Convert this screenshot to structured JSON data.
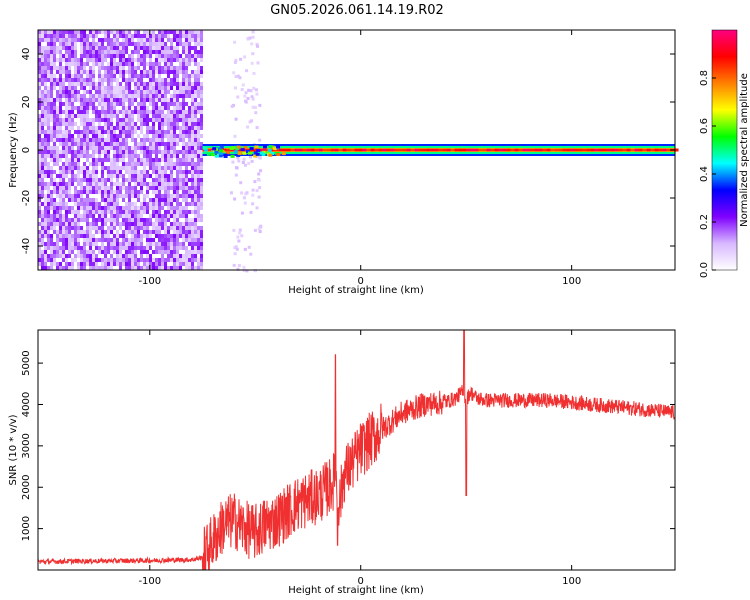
{
  "title": "GN05.2026.061.14.19.R02",
  "chart_data": [
    {
      "type": "heatmap",
      "xlabel": "Height of straight line (km)",
      "ylabel": "Frequency (Hz)",
      "xlim": [
        -153,
        149
      ],
      "ylim": [
        -50,
        50
      ],
      "x_ticks": [
        -100,
        0,
        100
      ],
      "y_ticks": [
        -40,
        -20,
        0,
        20,
        40
      ],
      "colorbar": {
        "label": "Normalized spectral amplitude",
        "range": [
          0,
          1
        ],
        "ticks": [
          0.0,
          0.2,
          0.4,
          0.6,
          0.8
        ],
        "tick_labels": [
          "0.0",
          "0.2",
          "0.4",
          "0.6",
          "0.8"
        ],
        "colormap": [
          "#ffffff",
          "#d8b8ff",
          "#7f00ff",
          "#0000ff",
          "#00ffff",
          "#00ff00",
          "#ffff00",
          "#ff8000",
          "#ff0000",
          "#ff0080"
        ]
      },
      "regions": [
        {
          "description": "noise",
          "x_range": [
            -153,
            -75
          ],
          "freq_range": [
            -50,
            50
          ],
          "amplitude": 0.15
        },
        {
          "description": "signal line",
          "x_range": [
            -75,
            149
          ],
          "freq": 0,
          "amplitude": 0.95
        }
      ]
    },
    {
      "type": "line",
      "xlabel": "Height of straight line (km)",
      "ylabel": "SNR (10 * v/v)",
      "xlim": [
        -153,
        149
      ],
      "ylim": [
        0,
        5800
      ],
      "x_ticks": [
        -100,
        0,
        100
      ],
      "y_ticks": [
        1000,
        2000,
        3000,
        4000,
        5000
      ],
      "color": "#f03030",
      "series": [
        {
          "x": [
            -153,
            -140,
            -120,
            -100,
            -80,
            -75,
            -70,
            -65,
            -60,
            -55,
            -50,
            -45,
            -40,
            -35,
            -30,
            -25,
            -20,
            -15,
            -12,
            -10,
            -8,
            -5,
            0,
            10,
            20,
            30,
            40,
            45,
            48,
            50,
            52,
            55,
            60,
            70,
            80,
            90,
            100,
            110,
            120,
            130,
            140,
            149
          ],
          "y": [
            200,
            210,
            220,
            230,
            250,
            300,
            700,
            1100,
            1200,
            1000,
            900,
            1100,
            1200,
            1400,
            1600,
            1700,
            1800,
            2000,
            2200,
            1600,
            2300,
            2500,
            2900,
            3400,
            3800,
            4000,
            4050,
            4150,
            4300,
            4100,
            4300,
            4150,
            4100,
            4100,
            4100,
            4100,
            4050,
            4000,
            3950,
            3900,
            3850,
            3800
          ]
        }
      ],
      "annotations_peaks": [
        {
          "x": -12,
          "y": 5200
        },
        {
          "x": -11,
          "y": 600
        },
        {
          "x": 49,
          "y": 5800
        },
        {
          "x": 50,
          "y": 1800
        }
      ]
    }
  ]
}
